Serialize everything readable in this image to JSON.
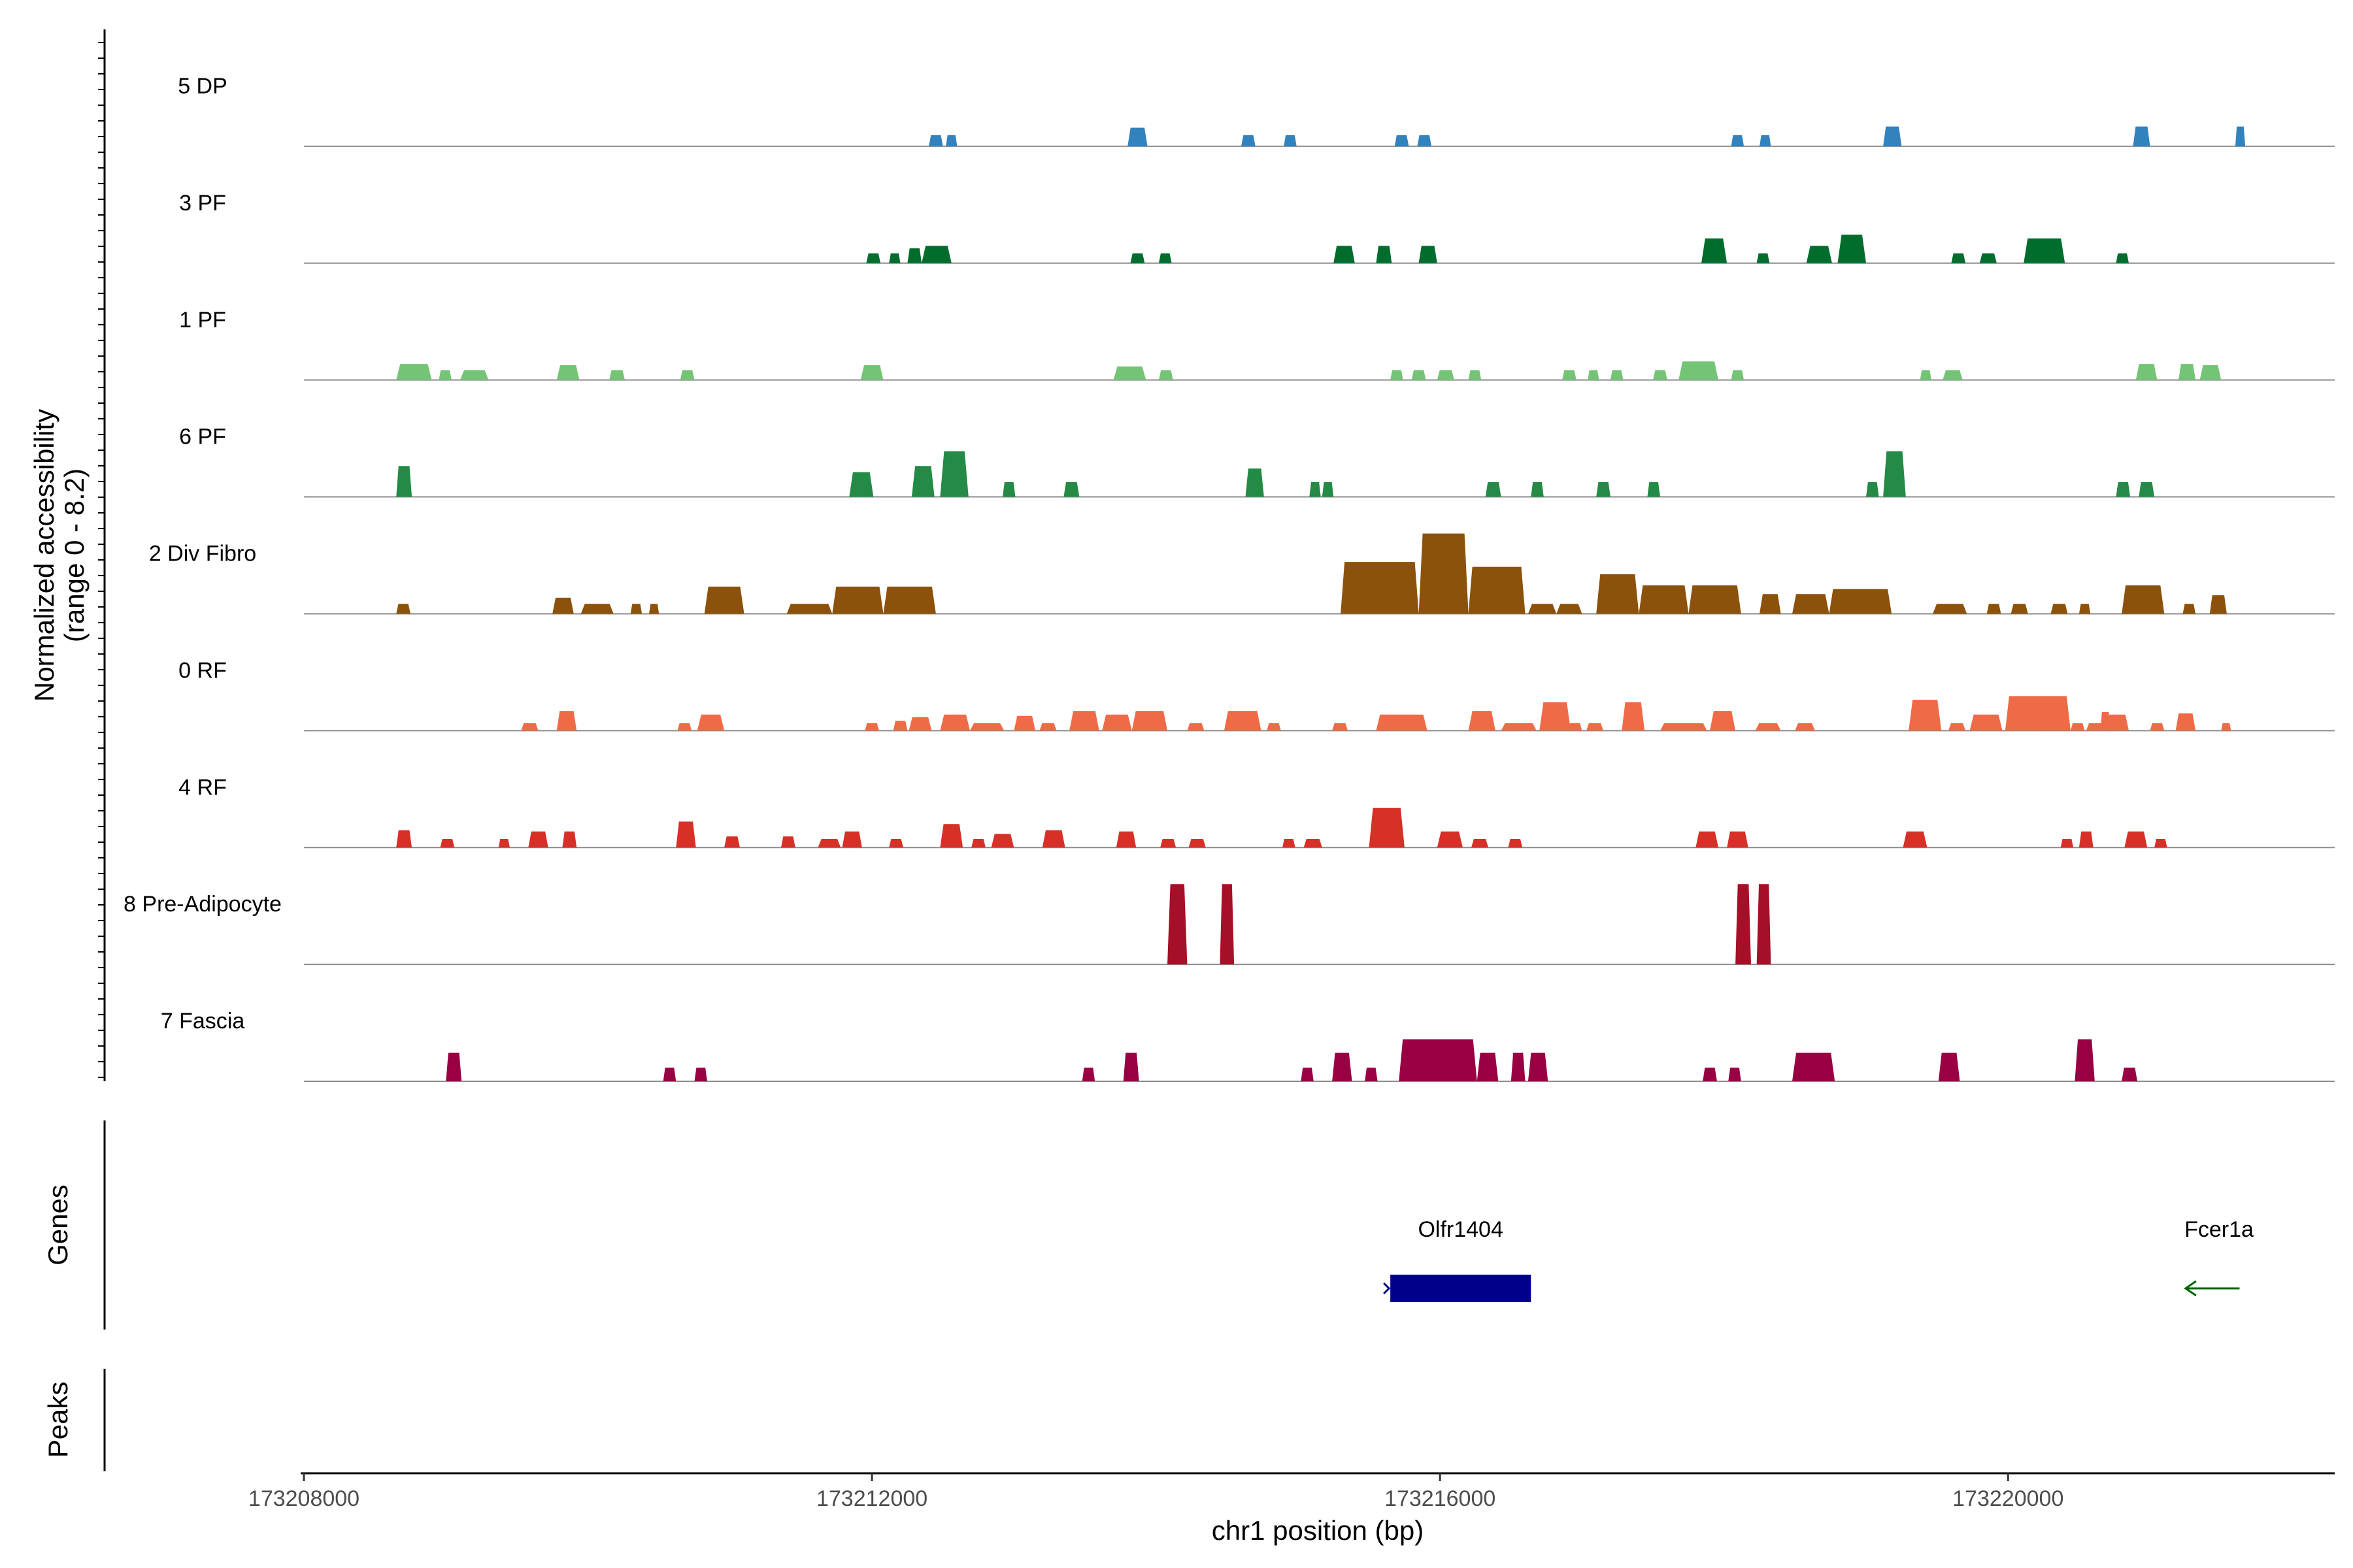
{
  "chart_data": {
    "type": "area",
    "title": "",
    "xlabel": "chr1 position (bp)",
    "ylabel": [
      "Normalized accessibility",
      "(range 0 - 8.2)"
    ],
    "chromosome": "chr1",
    "xlim": [
      173208000,
      173222300
    ],
    "xticks": [
      173208000,
      173212000,
      173216000,
      173220000
    ],
    "xtick_labels": [
      "173208000",
      "173212000",
      "173216000",
      "173220000"
    ],
    "ylim": [
      0,
      8.2
    ],
    "series": [
      {
        "name": "5 DP",
        "color": "#3182bd",
        "peaks": [
          [
            173212400,
            173212500,
            0.9
          ],
          [
            173212520,
            173212600,
            0.9
          ],
          [
            173213800,
            173213940,
            1.5
          ],
          [
            173214600,
            173214700,
            0.9
          ],
          [
            173214900,
            173214990,
            0.9
          ],
          [
            173215680,
            173215780,
            0.9
          ],
          [
            173215840,
            173215940,
            0.9
          ],
          [
            173218050,
            173218140,
            0.9
          ],
          [
            173218250,
            173218330,
            0.9
          ],
          [
            173219120,
            173219250,
            1.6
          ],
          [
            173220880,
            173221000,
            1.6
          ],
          [
            173221600,
            173221670,
            1.6
          ]
        ]
      },
      {
        "name": "3 PF",
        "color": "#006d2c",
        "peaks": [
          [
            173211960,
            173212060,
            0.8
          ],
          [
            173212120,
            173212200,
            0.8
          ],
          [
            173212250,
            173212350,
            1.2
          ],
          [
            173212350,
            173212560,
            1.4
          ],
          [
            173213820,
            173213920,
            0.8
          ],
          [
            173214020,
            173214110,
            0.8
          ],
          [
            173215250,
            173215400,
            1.4
          ],
          [
            173215550,
            173215660,
            1.4
          ],
          [
            173215850,
            173215980,
            1.4
          ],
          [
            173217840,
            173218020,
            2.0
          ],
          [
            173218230,
            173218320,
            0.8
          ],
          [
            173218580,
            173218760,
            1.4
          ],
          [
            173218800,
            173219000,
            2.3
          ],
          [
            173219600,
            173219700,
            0.8
          ],
          [
            173219800,
            173219920,
            0.8
          ],
          [
            173220110,
            173220400,
            2.0
          ],
          [
            173220760,
            173220850,
            0.8
          ]
        ]
      },
      {
        "name": "1 PF",
        "color": "#74c476",
        "peaks": [
          [
            173208650,
            173208900,
            1.3
          ],
          [
            173208950,
            173209040,
            0.8
          ],
          [
            173209100,
            173209300,
            0.8
          ],
          [
            173209780,
            173209940,
            1.2
          ],
          [
            173210150,
            173210260,
            0.8
          ],
          [
            173210650,
            173210750,
            0.8
          ],
          [
            173211920,
            173212080,
            1.2
          ],
          [
            173213700,
            173213930,
            1.1
          ],
          [
            173214020,
            173214120,
            0.8
          ],
          [
            173215650,
            173215740,
            0.8
          ],
          [
            173215800,
            173215900,
            0.8
          ],
          [
            173215980,
            173216100,
            0.8
          ],
          [
            173216200,
            173216290,
            0.8
          ],
          [
            173216860,
            173216960,
            0.8
          ],
          [
            173217040,
            173217120,
            0.8
          ],
          [
            173217200,
            173217290,
            0.8
          ],
          [
            173217500,
            173217600,
            0.8
          ],
          [
            173217680,
            173217960,
            1.5
          ],
          [
            173218050,
            173218140,
            0.8
          ],
          [
            173219380,
            173219460,
            0.8
          ],
          [
            173219540,
            173219680,
            0.8
          ],
          [
            173220900,
            173221050,
            1.3
          ],
          [
            173221200,
            173221320,
            1.3
          ],
          [
            173221350,
            173221500,
            1.2
          ]
        ]
      },
      {
        "name": "6 PF",
        "color": "#238b45",
        "peaks": [
          [
            173208650,
            173208760,
            2.5
          ],
          [
            173211840,
            173212010,
            2.0
          ],
          [
            173212280,
            173212440,
            2.5
          ],
          [
            173212480,
            173212680,
            3.7
          ],
          [
            173212920,
            173213010,
            1.2
          ],
          [
            173213350,
            173213460,
            1.2
          ],
          [
            173214630,
            173214760,
            2.3
          ],
          [
            173215080,
            173215160,
            1.2
          ],
          [
            173215170,
            173215250,
            1.2
          ],
          [
            173216320,
            173216430,
            1.2
          ],
          [
            173216640,
            173216730,
            1.2
          ],
          [
            173217100,
            173217200,
            1.2
          ],
          [
            173217460,
            173217550,
            1.2
          ],
          [
            173219000,
            173219090,
            1.2
          ],
          [
            173219120,
            173219280,
            3.7
          ],
          [
            173220760,
            173220860,
            1.2
          ],
          [
            173220920,
            173221030,
            1.2
          ]
        ]
      },
      {
        "name": "2 Div Fibro",
        "color": "#8c510a",
        "peaks": [
          [
            173208650,
            173208750,
            0.8
          ],
          [
            173209750,
            173209900,
            1.3
          ],
          [
            173209950,
            173210180,
            0.8
          ],
          [
            173210300,
            173210380,
            0.8
          ],
          [
            173210430,
            173210500,
            0.8
          ],
          [
            173210820,
            173211100,
            2.2
          ],
          [
            173211400,
            173211720,
            0.8
          ],
          [
            173211720,
            173212080,
            2.2
          ],
          [
            173212080,
            173212450,
            2.2
          ],
          [
            173215300,
            173215850,
            4.2
          ],
          [
            173215850,
            173216200,
            6.5
          ],
          [
            173216200,
            173216600,
            3.8
          ],
          [
            173216620,
            173216820,
            0.8
          ],
          [
            173216820,
            173217000,
            0.8
          ],
          [
            173217100,
            173217400,
            3.2
          ],
          [
            173217400,
            173217750,
            2.3
          ],
          [
            173217750,
            173218120,
            2.3
          ],
          [
            173218250,
            173218400,
            1.6
          ],
          [
            173218480,
            173218740,
            1.6
          ],
          [
            173218740,
            173219180,
            2.0
          ],
          [
            173219470,
            173219710,
            0.8
          ],
          [
            173219850,
            173219950,
            0.8
          ],
          [
            173220020,
            173220140,
            0.8
          ],
          [
            173220300,
            173220420,
            0.8
          ],
          [
            173220500,
            173220580,
            0.8
          ],
          [
            173220800,
            173221100,
            2.3
          ],
          [
            173221230,
            173221320,
            0.8
          ],
          [
            173221420,
            173221540,
            1.5
          ]
        ]
      },
      {
        "name": "0 RF",
        "color": "#ef6b47",
        "peaks": [
          [
            173209530,
            173209650,
            0.6
          ],
          [
            173209780,
            173209920,
            1.6
          ],
          [
            173210630,
            173210730,
            0.6
          ],
          [
            173210770,
            173210960,
            1.3
          ],
          [
            173211950,
            173212050,
            0.6
          ],
          [
            173212150,
            173212250,
            0.8
          ],
          [
            173212260,
            173212420,
            1.1
          ],
          [
            173212480,
            173212690,
            1.3
          ],
          [
            173212690,
            173212930,
            0.6
          ],
          [
            173213000,
            173213150,
            1.2
          ],
          [
            173213180,
            173213300,
            0.6
          ],
          [
            173213390,
            173213600,
            1.6
          ],
          [
            173213620,
            173213830,
            1.3
          ],
          [
            173213830,
            173214080,
            1.6
          ],
          [
            173214220,
            173214340,
            0.6
          ],
          [
            173214480,
            173214740,
            1.6
          ],
          [
            173214780,
            173214880,
            0.6
          ],
          [
            173215240,
            173215350,
            0.6
          ],
          [
            173215550,
            173215910,
            1.3
          ],
          [
            173216200,
            173216390,
            1.6
          ],
          [
            173216430,
            173216680,
            0.6
          ],
          [
            173216700,
            173216920,
            2.3
          ],
          [
            173216900,
            173217000,
            0.6
          ],
          [
            173217030,
            173217150,
            0.6
          ],
          [
            173217280,
            173217440,
            2.3
          ],
          [
            173217550,
            173217880,
            0.6
          ],
          [
            173217900,
            173218080,
            1.6
          ],
          [
            173218220,
            173218400,
            0.6
          ],
          [
            173218500,
            173218640,
            0.6
          ],
          [
            173219300,
            173219530,
            2.5
          ],
          [
            173219580,
            173219700,
            0.6
          ],
          [
            173219730,
            173219960,
            1.3
          ],
          [
            173219980,
            173220440,
            2.8
          ],
          [
            173220200,
            173220440,
            0.6
          ],
          [
            173220440,
            173220540,
            0.6
          ],
          [
            173220550,
            173220680,
            0.6
          ],
          [
            173220650,
            173220720,
            1.5
          ],
          [
            173220690,
            173220850,
            1.3
          ],
          [
            173221000,
            173221100,
            0.6
          ],
          [
            173221180,
            173221320,
            1.4
          ],
          [
            173221500,
            173221570,
            0.6
          ]
        ]
      },
      {
        "name": "4 RF",
        "color": "#d73027",
        "peaks": [
          [
            173208650,
            173208760,
            1.4
          ],
          [
            173208960,
            173209060,
            0.7
          ],
          [
            173209370,
            173209450,
            0.7
          ],
          [
            173209580,
            173209720,
            1.3
          ],
          [
            173209820,
            173209920,
            1.3
          ],
          [
            173210620,
            173210760,
            2.1
          ],
          [
            173210960,
            173211070,
            0.9
          ],
          [
            173211360,
            173211460,
            0.9
          ],
          [
            173211620,
            173211780,
            0.7
          ],
          [
            173211790,
            173211930,
            1.3
          ],
          [
            173212120,
            173212220,
            0.7
          ],
          [
            173212480,
            173212640,
            1.9
          ],
          [
            173212700,
            173212800,
            0.7
          ],
          [
            173212840,
            173213000,
            1.1
          ],
          [
            173213200,
            173213360,
            1.4
          ],
          [
            173213720,
            173213860,
            1.3
          ],
          [
            173214030,
            173214140,
            0.7
          ],
          [
            173214230,
            173214350,
            0.7
          ],
          [
            173214890,
            173214980,
            0.7
          ],
          [
            173215040,
            173215170,
            0.7
          ],
          [
            173215500,
            173215750,
            3.2
          ],
          [
            173215980,
            173216160,
            1.3
          ],
          [
            173216220,
            173216340,
            0.7
          ],
          [
            173216480,
            173216580,
            0.7
          ],
          [
            173217800,
            173217960,
            1.3
          ],
          [
            173218020,
            173218170,
            1.3
          ],
          [
            173219260,
            173219430,
            1.3
          ],
          [
            173220370,
            173220460,
            0.7
          ],
          [
            173220500,
            173220600,
            1.3
          ],
          [
            173220820,
            173220980,
            1.3
          ],
          [
            173221030,
            173221120,
            0.7
          ]
        ]
      },
      {
        "name": "8 Pre-Adipocyte",
        "color": "#a50f27",
        "peaks": [
          [
            173214080,
            173214220,
            6.5
          ],
          [
            173214450,
            173214550,
            6.5
          ],
          [
            173218080,
            173218190,
            6.5
          ],
          [
            173218230,
            173218330,
            6.5
          ]
        ]
      },
      {
        "name": "7 Fascia",
        "color": "#980043",
        "peaks": [
          [
            173209000,
            173209110,
            2.3
          ],
          [
            173210530,
            173210620,
            1.1
          ],
          [
            173210750,
            173210840,
            1.1
          ],
          [
            173213480,
            173213570,
            1.1
          ],
          [
            173213770,
            173213880,
            2.3
          ],
          [
            173215020,
            173215110,
            1.1
          ],
          [
            173215240,
            173215380,
            2.3
          ],
          [
            173215470,
            173215560,
            1.1
          ],
          [
            173215710,
            173216260,
            3.4
          ],
          [
            173216260,
            173216410,
            2.3
          ],
          [
            173216500,
            173216600,
            2.3
          ],
          [
            173216620,
            173216760,
            2.3
          ],
          [
            173217850,
            173217950,
            1.1
          ],
          [
            173218030,
            173218120,
            1.1
          ],
          [
            173218480,
            173218780,
            2.3
          ],
          [
            173219510,
            173219660,
            2.3
          ],
          [
            173220470,
            173220610,
            3.4
          ],
          [
            173220800,
            173220910,
            1.1
          ]
        ]
      }
    ],
    "genes_track": {
      "label": "Genes",
      "genes": [
        {
          "name": "Olfr1404",
          "start": 173215650,
          "end": 173216640,
          "strand": "-",
          "color": "#00008b"
        },
        {
          "name": "Fcer1a",
          "start": 173221250,
          "end": 173221630,
          "strand": "-",
          "color": "#006400"
        }
      ]
    },
    "peaks_track": {
      "label": "Peaks",
      "peaks": []
    }
  }
}
